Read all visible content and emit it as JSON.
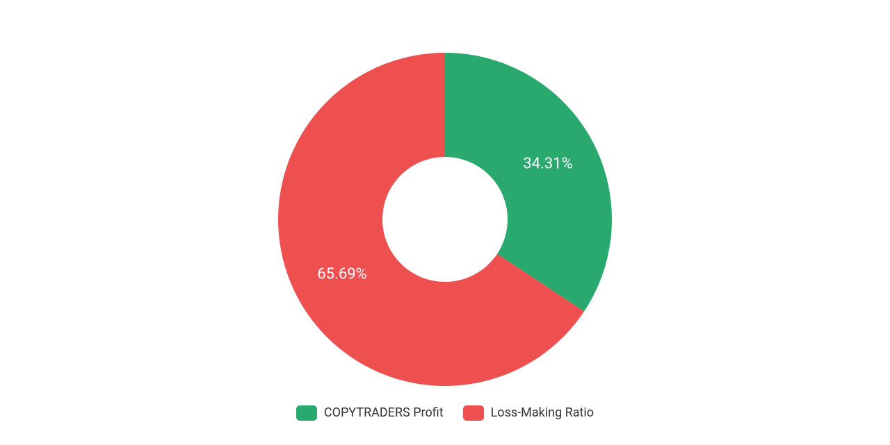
{
  "chart": {
    "type": "donut",
    "background_color": "#ffffff",
    "outer_radius": 240,
    "inner_radius": 90,
    "start_angle_deg": 0,
    "slices": [
      {
        "key": "profit",
        "value": 34.31,
        "label": "34.31%",
        "color": "#29a96d",
        "label_color": "#ffffff",
        "label_fontsize": 22,
        "label_angle_deg": 61.76,
        "label_radius": 168
      },
      {
        "key": "loss",
        "value": 65.69,
        "label": "65.69%",
        "color": "#ee5050",
        "label_color": "#ffffff",
        "label_fontsize": 22,
        "label_angle_deg": 241.76,
        "label_radius": 168
      }
    ],
    "legend": {
      "items": [
        {
          "label": "COPYTRADERS Profit",
          "color": "#29a96d"
        },
        {
          "label": "Loss-Making Ratio",
          "color": "#ee5050"
        }
      ],
      "swatch_width": 30,
      "swatch_height": 22,
      "swatch_radius": 5,
      "fontsize": 18,
      "text_color": "#333333"
    }
  }
}
